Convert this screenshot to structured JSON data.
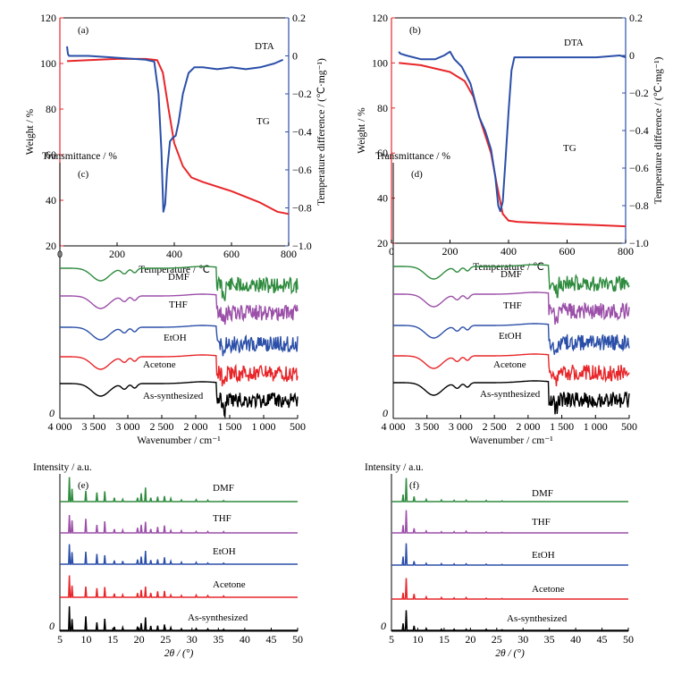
{
  "colors": {
    "tg": "#e8262a",
    "dta": "#2b4fa8",
    "dmf": "#2e8b3e",
    "thf": "#9b4fa8",
    "etoh": "#2b4fa8",
    "acetone": "#e8262a",
    "as": "#000000"
  },
  "chart_data": [
    {
      "id": "a",
      "panel_label": "(a)",
      "type": "line",
      "xlabel": "Temperature / ℃",
      "ylabel_left": "Weight / %",
      "ylabel_right": "Temperature difference / (℃·mg⁻¹)",
      "xlim": [
        0,
        800
      ],
      "ylim_left": [
        20,
        120
      ],
      "ylim_right": [
        -1.0,
        0.2
      ],
      "x_ticks": [
        "0",
        "200",
        "400",
        "600",
        "800"
      ],
      "y_ticks_left": [
        "20",
        "40",
        "60",
        "80",
        "100",
        "120"
      ],
      "y_ticks_right": [
        "0.2",
        "0",
        "−0.2",
        "−0.4",
        "−0.6",
        "−0.8",
        "−1.0"
      ],
      "series": [
        {
          "name": "TG",
          "axis": "left",
          "colorKey": "tg",
          "x": [
            25,
            100,
            200,
            300,
            340,
            360,
            380,
            400,
            430,
            460,
            500,
            600,
            700,
            760,
            800
          ],
          "y": [
            101,
            101.5,
            102,
            102,
            101.5,
            96,
            80,
            65,
            55,
            50,
            48,
            44,
            39,
            35,
            34
          ]
        },
        {
          "name": "DTA",
          "axis": "right",
          "colorKey": "dta",
          "x": [
            25,
            28,
            32,
            40,
            100,
            200,
            300,
            330,
            345,
            355,
            362,
            368,
            375,
            385,
            395,
            405,
            415,
            430,
            450,
            470,
            500,
            550,
            600,
            650,
            700,
            750,
            780
          ],
          "y": [
            0.05,
            0.01,
            0.0,
            0.0,
            0.0,
            -0.01,
            -0.02,
            -0.03,
            -0.2,
            -0.5,
            -0.82,
            -0.78,
            -0.6,
            -0.45,
            -0.43,
            -0.42,
            -0.35,
            -0.2,
            -0.09,
            -0.06,
            -0.06,
            -0.07,
            -0.06,
            -0.07,
            -0.06,
            -0.04,
            -0.02
          ]
        }
      ]
    },
    {
      "id": "b",
      "panel_label": "(b)",
      "type": "line",
      "xlabel": "Temperature / ℃",
      "ylabel_left": "Weight / %",
      "ylabel_right": "Temperature difference / (℃·mg⁻¹)",
      "xlim": [
        0,
        800
      ],
      "ylim_left": [
        20,
        120
      ],
      "ylim_right": [
        -1.0,
        0.2
      ],
      "x_ticks": [
        "0",
        "200",
        "400",
        "600",
        "800"
      ],
      "y_ticks_left": [
        "20",
        "40",
        "60",
        "80",
        "100",
        "120"
      ],
      "y_ticks_right": [
        "0.2",
        "0",
        "−0.2",
        "−0.4",
        "−0.6",
        "−0.8",
        "−1.0"
      ],
      "series": [
        {
          "name": "TG",
          "axis": "left",
          "colorKey": "tg",
          "x": [
            25,
            100,
            200,
            250,
            280,
            300,
            320,
            340,
            360,
            380,
            400,
            430,
            500,
            600,
            700,
            800
          ],
          "y": [
            100,
            99,
            96,
            92,
            85,
            76,
            68,
            60,
            46,
            33,
            30,
            29.5,
            29,
            28.5,
            28,
            27.5
          ]
        },
        {
          "name": "DTA",
          "axis": "right",
          "colorKey": "dta",
          "x": [
            25,
            30,
            50,
            100,
            150,
            180,
            200,
            215,
            240,
            270,
            300,
            320,
            340,
            355,
            365,
            372,
            380,
            390,
            400,
            410,
            420,
            440,
            500,
            600,
            700,
            780,
            800
          ],
          "y": [
            0.02,
            0.01,
            0.0,
            -0.02,
            -0.02,
            0.0,
            0.02,
            -0.02,
            -0.06,
            -0.15,
            -0.33,
            -0.4,
            -0.5,
            -0.65,
            -0.8,
            -0.83,
            -0.78,
            -0.55,
            -0.3,
            -0.08,
            -0.01,
            -0.01,
            -0.01,
            -0.01,
            -0.01,
            0.0,
            -0.01
          ]
        }
      ]
    },
    {
      "id": "c",
      "panel_label": "(c)",
      "type": "line",
      "xlabel": "Wavenumber / cm⁻¹",
      "ylabel": "Transmittance / %",
      "xlim": [
        4000,
        500
      ],
      "x_reversed": true,
      "x_ticks": [
        "4 000",
        "3 500",
        "3 000",
        "2 500",
        "2 000",
        "1 500",
        "1 000",
        "500"
      ],
      "origin_label": "0",
      "series": [
        {
          "name": "DMF",
          "colorKey": "dmf"
        },
        {
          "name": "THF",
          "colorKey": "thf"
        },
        {
          "name": "EtOH",
          "colorKey": "etoh"
        },
        {
          "name": "Acetone",
          "colorKey": "acetone"
        },
        {
          "name": "As-synthesized",
          "colorKey": "as"
        }
      ]
    },
    {
      "id": "d",
      "panel_label": "(d)",
      "type": "line",
      "xlabel": "Wavenumber / cm⁻¹",
      "ylabel": "Transmittance / %",
      "xlim": [
        4000,
        500
      ],
      "x_reversed": true,
      "x_ticks": [
        "4 000",
        "3 500",
        "3 000",
        "2 500",
        "2 000",
        "1 500",
        "1 000",
        "500"
      ],
      "origin_label": "0",
      "series": [
        {
          "name": "DMF",
          "colorKey": "dmf"
        },
        {
          "name": "THF",
          "colorKey": "thf"
        },
        {
          "name": "EtOH",
          "colorKey": "etoh"
        },
        {
          "name": "Acetone",
          "colorKey": "acetone"
        },
        {
          "name": "As-synthesized",
          "colorKey": "as"
        }
      ]
    },
    {
      "id": "e",
      "panel_label": "(e)",
      "type": "line",
      "xlabel": "2θ / (°)",
      "ylabel": "Intensity / a.u.",
      "xlim": [
        5,
        50
      ],
      "x_ticks": [
        "5",
        "10",
        "15",
        "20",
        "25",
        "30",
        "35",
        "40",
        "45",
        "50"
      ],
      "origin_label": "0",
      "series": [
        {
          "name": "DMF",
          "colorKey": "dmf"
        },
        {
          "name": "THF",
          "colorKey": "thf"
        },
        {
          "name": "EtOH",
          "colorKey": "etoh"
        },
        {
          "name": "Acetone",
          "colorKey": "acetone"
        },
        {
          "name": "As-synthesized",
          "colorKey": "as"
        }
      ]
    },
    {
      "id": "f",
      "panel_label": "(f)",
      "type": "line",
      "xlabel": "2θ / (°)",
      "ylabel": "Intensity / a.u.",
      "xlim": [
        5,
        50
      ],
      "x_ticks": [
        "5",
        "10",
        "15",
        "20",
        "25",
        "30",
        "35",
        "40",
        "45",
        "50"
      ],
      "origin_label": "0",
      "series": [
        {
          "name": "DMF",
          "colorKey": "dmf"
        },
        {
          "name": "THF",
          "colorKey": "thf"
        },
        {
          "name": "EtOH",
          "colorKey": "etoh"
        },
        {
          "name": "Acetone",
          "colorKey": "acetone"
        },
        {
          "name": "As-synthesized",
          "colorKey": "as"
        }
      ]
    }
  ]
}
